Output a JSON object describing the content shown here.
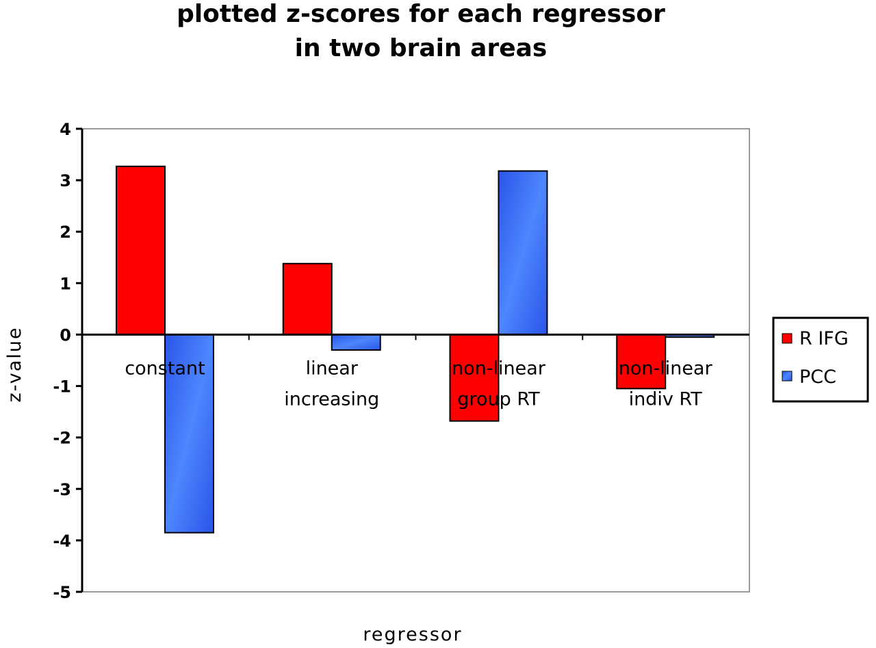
{
  "chart_data": {
    "type": "bar",
    "title_lines": [
      "plotted z-scores for each regressor",
      "in two brain areas"
    ],
    "xlabel": "regressor",
    "ylabel": "z-value",
    "ylim": [
      -5,
      4
    ],
    "yticks": [
      "4",
      "3",
      "2",
      "1",
      "0",
      "-1",
      "-2",
      "-3",
      "-4",
      "-5"
    ],
    "categories": [
      [
        "constant"
      ],
      [
        "linear",
        "increasing"
      ],
      [
        "non-linear",
        "group RT"
      ],
      [
        "non-linear",
        "indiv RT"
      ]
    ],
    "series": [
      {
        "name": "R IFG",
        "color": "#ff0000",
        "values": [
          3.27,
          1.38,
          -1.68,
          -1.05
        ]
      },
      {
        "name": "PCC",
        "color": "#3366ff",
        "values": [
          -3.85,
          -0.3,
          3.18,
          -0.05
        ]
      }
    ],
    "grid": false,
    "legend": "right"
  }
}
